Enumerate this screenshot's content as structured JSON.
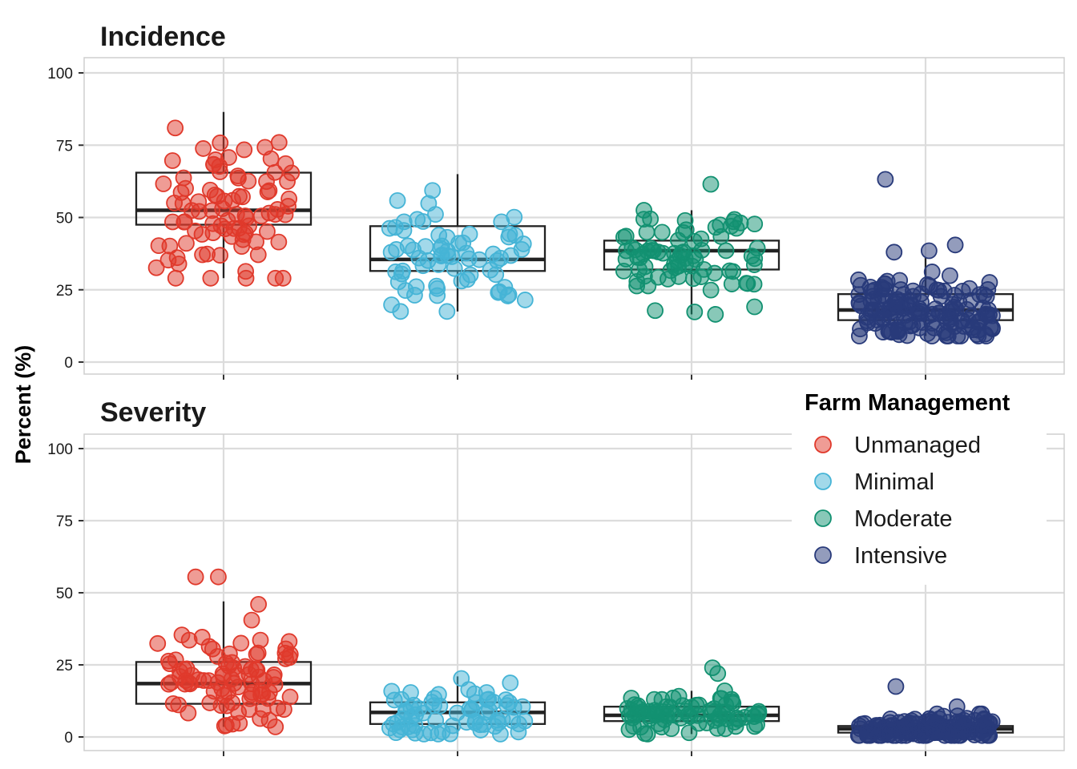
{
  "chart_data": {
    "type": "box+jitter",
    "ylabel": "Percent (%)",
    "ylim": [
      0,
      100
    ],
    "yticks": [
      0,
      25,
      50,
      75,
      100
    ],
    "legend": {
      "title": "Farm Management",
      "placement": "right",
      "entries": [
        "Unmanaged",
        "Minimal",
        "Moderate",
        "Intensive"
      ]
    },
    "colors": {
      "Unmanaged": "#e0392b",
      "Minimal": "#45b4d6",
      "Moderate": "#129171",
      "Intensive": "#283a7a"
    },
    "grid": true,
    "categories": [
      "Unmanaged",
      "Minimal",
      "Moderate",
      "Intensive"
    ],
    "panels": [
      {
        "title": "Incidence",
        "boxes": [
          {
            "group": "Unmanaged",
            "q1": 47.5,
            "median": 52.5,
            "q3": 65.5,
            "whisker_low": 29,
            "whisker_high": 86.5,
            "n": 90,
            "spread": 12
          },
          {
            "group": "Minimal",
            "q1": 31.5,
            "median": 35.5,
            "q3": 47,
            "whisker_low": 17.5,
            "whisker_high": 65,
            "n": 70,
            "spread": 10
          },
          {
            "group": "Moderate",
            "q1": 32,
            "median": 38.5,
            "q3": 42,
            "whisker_low": 16.5,
            "whisker_high": 52.5,
            "n": 80,
            "spread": 8
          },
          {
            "group": "Intensive",
            "q1": 14.5,
            "median": 18,
            "q3": 23.5,
            "whisker_low": 9,
            "whisker_high": 36,
            "n": 150,
            "spread": 6
          }
        ],
        "outliers": [
          {
            "group": "Moderate",
            "y": 61.5,
            "dx": 0.11
          },
          {
            "group": "Intensive",
            "y": 63.2,
            "dx": -0.23
          },
          {
            "group": "Intensive",
            "y": 40.5,
            "dx": 0.17
          },
          {
            "group": "Intensive",
            "y": 38.5,
            "dx": 0.02
          },
          {
            "group": "Intensive",
            "y": 38,
            "dx": -0.18
          }
        ]
      },
      {
        "title": "Severity",
        "boxes": [
          {
            "group": "Unmanaged",
            "q1": 11.5,
            "median": 18.5,
            "q3": 26,
            "whisker_low": 3.5,
            "whisker_high": 47,
            "n": 90,
            "spread": 9
          },
          {
            "group": "Minimal",
            "q1": 4.5,
            "median": 8.5,
            "q3": 12,
            "whisker_low": 1,
            "whisker_high": 21,
            "n": 70,
            "spread": 5
          },
          {
            "group": "Moderate",
            "q1": 5.5,
            "median": 7.5,
            "q3": 10.5,
            "whisker_low": 1,
            "whisker_high": 16,
            "n": 80,
            "spread": 3.5
          },
          {
            "group": "Intensive",
            "q1": 1.5,
            "median": 2.8,
            "q3": 3.8,
            "whisker_low": 0.5,
            "whisker_high": 8,
            "n": 150,
            "spread": 2.2
          }
        ],
        "outliers": [
          {
            "group": "Unmanaged",
            "y": 55.5,
            "dx": -0.16
          },
          {
            "group": "Unmanaged",
            "y": 55.5,
            "dx": -0.03
          },
          {
            "group": "Unmanaged",
            "y": 46,
            "dx": 0.2
          },
          {
            "group": "Moderate",
            "y": 24,
            "dx": 0.12
          },
          {
            "group": "Moderate",
            "y": 22,
            "dx": 0.15
          },
          {
            "group": "Moderate",
            "y": 16,
            "dx": 0.19
          },
          {
            "group": "Intensive",
            "y": 17.5,
            "dx": -0.17
          },
          {
            "group": "Intensive",
            "y": 10.5,
            "dx": 0.18
          }
        ]
      }
    ]
  }
}
